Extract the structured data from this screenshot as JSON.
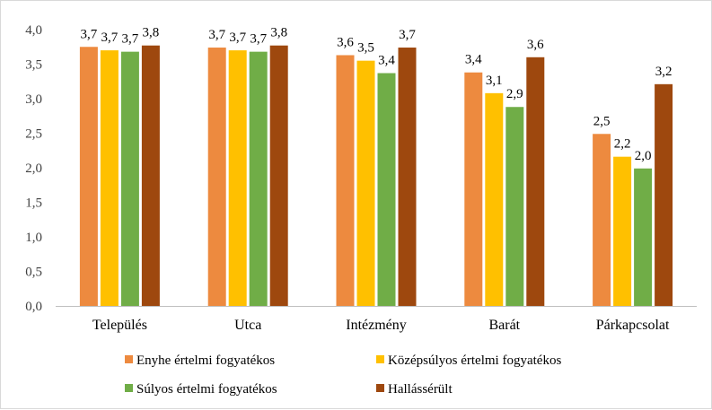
{
  "chart_data": {
    "type": "bar",
    "categories": [
      "Település",
      "Utca",
      "Intézmény",
      "Barát",
      "Párkapcsolat"
    ],
    "series": [
      {
        "name": "Enyhe értelmi fogyatékos",
        "color": "#ed8a3f",
        "values": [
          3.75,
          3.74,
          3.63,
          3.38,
          2.49
        ],
        "labels": [
          "3,7",
          "3,7",
          "3,6",
          "3,4",
          "2,5"
        ]
      },
      {
        "name": "Középsúlyos értelmi fogyatékos",
        "color": "#ffc000",
        "values": [
          3.7,
          3.7,
          3.55,
          3.08,
          2.16
        ],
        "labels": [
          "3,7",
          "3,7",
          "3,5",
          "3,1",
          "2,2"
        ]
      },
      {
        "name": "Súlyos értelmi fogyatékos",
        "color": "#70ad47",
        "values": [
          3.68,
          3.68,
          3.37,
          2.88,
          1.99
        ],
        "labels": [
          "3,7",
          "3,7",
          "3,4",
          "2,9",
          "2,0"
        ]
      },
      {
        "name": "Hallássérült",
        "color": "#9e480e",
        "values": [
          3.77,
          3.77,
          3.74,
          3.6,
          3.21
        ],
        "labels": [
          "3,8",
          "3,8",
          "3,7",
          "3,6",
          "3,2"
        ]
      }
    ],
    "yticks": [
      "0,0",
      "0,5",
      "1,0",
      "1,5",
      "2,0",
      "2,5",
      "3,0",
      "3,5",
      "4,0"
    ],
    "ylim": [
      0,
      4
    ],
    "grid": false,
    "legend": "bottom"
  }
}
